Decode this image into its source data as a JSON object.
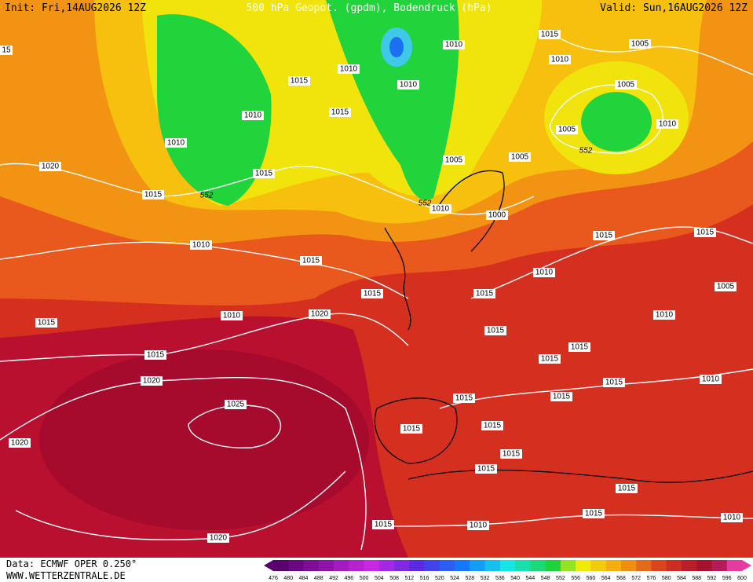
{
  "header": {
    "init": "Init: Fri,14AUG2026 12Z",
    "title": "500 hPa Geopot. (gpdm), Bodendruck (hPa)",
    "valid": "Valid: Sun,16AUG2026 12Z"
  },
  "map": {
    "isobar_labels": [
      "15",
      "1010",
      "1010",
      "1015",
      "1010",
      "1010",
      "1010",
      "1015",
      "1010",
      "1005",
      "1005",
      "1010",
      "1005",
      "1005",
      "1005",
      "1015",
      "1015",
      "1020",
      "1015",
      "1010",
      "1000",
      "1015",
      "1015",
      "1010",
      "1015",
      "1010",
      "1005",
      "1015",
      "1015",
      "1010",
      "1020",
      "1010",
      "1015",
      "1015",
      "1015",
      "1015",
      "1015",
      "1020",
      "1010",
      "1015",
      "1025",
      "1015",
      "1015",
      "1015",
      "1015",
      "1020",
      "1015",
      "1015",
      "1015",
      "1015",
      "1015",
      "1010",
      "1010",
      "1020"
    ],
    "height_labels": [
      "552",
      "552",
      "552"
    ]
  },
  "colorbar": {
    "levels": [
      476,
      480,
      484,
      488,
      492,
      496,
      500,
      504,
      508,
      512,
      516,
      520,
      524,
      528,
      532,
      536,
      540,
      544,
      548,
      552,
      556,
      560,
      564,
      568,
      572,
      576,
      580,
      584,
      588,
      592,
      596,
      600
    ]
  },
  "footer": {
    "data": "Data: ECMWF OPER 0.250°",
    "site": "WWW.WETTERZENTRALE.DE"
  }
}
